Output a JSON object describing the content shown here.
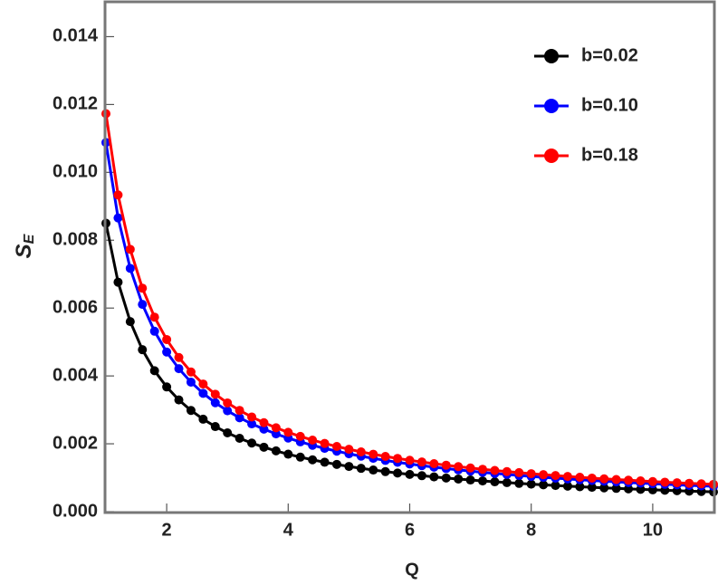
{
  "chart_data": {
    "type": "line",
    "x_label": "Q",
    "y_label": [
      "S",
      "E"
    ],
    "x": [
      1.0,
      1.2,
      1.4,
      1.6,
      1.8,
      2.0,
      2.2,
      2.4,
      2.6,
      2.8,
      3.0,
      3.2,
      3.4,
      3.6,
      3.8,
      4.0,
      4.2,
      4.4,
      4.6,
      4.8,
      5.0,
      5.2,
      5.4,
      5.6,
      5.8,
      6.0,
      6.2,
      6.4,
      6.6,
      6.8,
      7.0,
      7.2,
      7.4,
      7.6,
      7.8,
      8.0,
      8.2,
      8.4,
      8.6,
      8.8,
      9.0,
      9.2,
      9.4,
      9.6,
      9.8,
      10.0,
      10.2,
      10.4,
      10.6,
      10.8,
      11.0
    ],
    "series": [
      {
        "name": "b=0.02",
        "color": "#000000",
        "values": [
          0.0085,
          0.006764,
          0.005602,
          0.004773,
          0.004154,
          0.003675,
          0.003293,
          0.002983,
          0.002725,
          0.002508,
          0.002322,
          0.002162,
          0.002022,
          0.0019,
          0.001791,
          0.001694,
          0.001607,
          0.001528,
          0.001457,
          0.001392,
          0.001332,
          0.001277,
          0.001227,
          0.00118,
          0.001137,
          0.001097,
          0.00106,
          0.001025,
          0.000992,
          0.000962,
          0.000933,
          0.000905,
          0.00088,
          0.000856,
          0.000833,
          0.000811,
          0.00079,
          0.000771,
          0.000752,
          0.000735,
          0.000717,
          0.000701,
          0.000686,
          0.000671,
          0.000657,
          0.000643,
          0.00063,
          0.000617,
          0.000605,
          0.000594,
          0.000583
        ]
      },
      {
        "name": "b=0.10",
        "color": "#0000ff",
        "values": [
          0.01088,
          0.008658,
          0.007171,
          0.006109,
          0.005317,
          0.004704,
          0.004215,
          0.003818,
          0.003488,
          0.00321,
          0.002972,
          0.002767,
          0.002588,
          0.002432,
          0.002292,
          0.002168,
          0.002057,
          0.001956,
          0.001865,
          0.001782,
          0.001705,
          0.001635,
          0.001571,
          0.00151,
          0.001455,
          0.001404,
          0.001357,
          0.001312,
          0.00127,
          0.001231,
          0.001194,
          0.001158,
          0.001126,
          0.001096,
          0.001066,
          0.001038,
          0.001011,
          0.000987,
          0.000963,
          0.000941,
          0.000918,
          0.000897,
          0.000878,
          0.000859,
          0.000841,
          0.000823,
          0.000806,
          0.00079,
          0.000774,
          0.00076,
          0.000746
        ]
      },
      {
        "name": "b=0.18",
        "color": "#ff0000",
        "values": [
          0.01173,
          0.009334,
          0.007731,
          0.006587,
          0.005733,
          0.005072,
          0.004544,
          0.004117,
          0.003761,
          0.003461,
          0.003204,
          0.002984,
          0.00279,
          0.002622,
          0.002472,
          0.002338,
          0.002218,
          0.002109,
          0.002011,
          0.001921,
          0.001838,
          0.001762,
          0.001693,
          0.001628,
          0.001569,
          0.001514,
          0.001463,
          0.001415,
          0.001369,
          0.001328,
          0.001288,
          0.001249,
          0.001214,
          0.001181,
          0.00115,
          0.001119,
          0.00109,
          0.001064,
          0.001038,
          0.001014,
          0.000989,
          0.000967,
          0.000947,
          0.000926,
          0.000907,
          0.000887,
          0.000869,
          0.000851,
          0.000835,
          0.00082,
          0.000805
        ]
      }
    ],
    "xlim": [
      1,
      11
    ],
    "xticks": [
      2,
      4,
      6,
      8,
      10
    ],
    "ylim": [
      0,
      0.015
    ],
    "yticks": [
      {
        "value": 0,
        "label": "0.000"
      },
      0.002,
      0.004,
      0.006,
      0.008,
      {
        "value": 0.01,
        "label": "0.010"
      },
      0.012,
      0.014
    ],
    "legend": "top-right"
  }
}
